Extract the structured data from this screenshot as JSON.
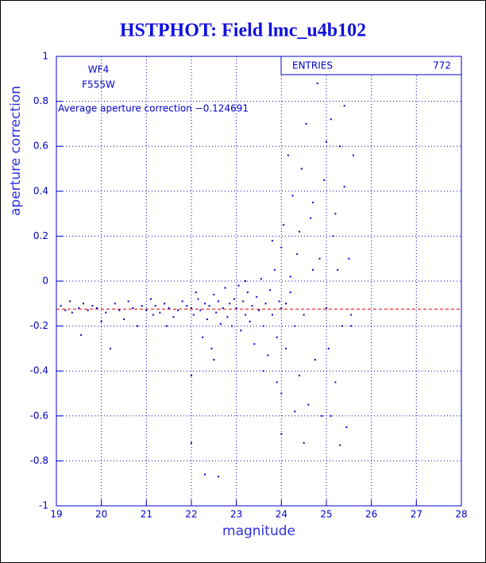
{
  "chart_data": {
    "type": "scatter",
    "title": "HSTPHOT: Field lmc_u4b102",
    "x_label": "magnitude",
    "y_label": "aperture correction",
    "annotations": [
      "WF4",
      "F555W",
      "Average aperture correction −0.124691"
    ],
    "stats_label": "ENTRIES",
    "entries": 772,
    "average_line": -0.124691,
    "average_line_color": "#e00000",
    "color": "#0000cc",
    "grid": true,
    "xlim": [
      19,
      28
    ],
    "xticks": [
      19,
      20,
      21,
      22,
      23,
      24,
      25,
      26,
      27,
      28
    ],
    "ylim": [
      -1,
      1
    ],
    "yticks": [
      -1,
      -0.8,
      -0.6,
      -0.4,
      -0.2,
      0,
      0.2,
      0.4,
      0.6,
      0.8,
      1
    ],
    "x": [
      19.1,
      19.2,
      19.3,
      19.35,
      19.5,
      19.6,
      19.7,
      19.8,
      19.55,
      19.9,
      20.0,
      20.1,
      20.2,
      20.3,
      20.4,
      20.5,
      20.6,
      20.7,
      20.8,
      20.9,
      21.0,
      21.1,
      21.15,
      21.2,
      21.3,
      21.4,
      21.45,
      21.5,
      21.6,
      21.7,
      21.8,
      21.9,
      22.0,
      22.0,
      22.0,
      22.05,
      22.1,
      22.15,
      22.2,
      22.25,
      22.3,
      22.35,
      22.4,
      22.45,
      22.5,
      22.55,
      22.6,
      22.65,
      22.7,
      22.75,
      22.8,
      22.85,
      22.9,
      22.95,
      22.3,
      22.6,
      22.5,
      23.0,
      23.05,
      23.1,
      23.15,
      23.2,
      23.25,
      23.3,
      23.35,
      23.4,
      23.45,
      23.5,
      23.55,
      23.6,
      23.65,
      23.7,
      23.75,
      23.8,
      23.85,
      23.9,
      23.95,
      23.2,
      23.6,
      23.8,
      23.9,
      24.0,
      24.0,
      24.0,
      24.0,
      24.05,
      24.1,
      24.15,
      24.2,
      24.25,
      24.3,
      24.35,
      24.4,
      24.45,
      24.5,
      24.55,
      24.6,
      24.65,
      24.7,
      24.75,
      24.8,
      24.85,
      24.9,
      24.95,
      24.5,
      24.4,
      24.3,
      24.2,
      24.1,
      24.7,
      25.0,
      25.0,
      25.05,
      25.1,
      25.15,
      25.2,
      25.25,
      25.3,
      25.35,
      25.4,
      25.45,
      25.5,
      25.55,
      25.6,
      25.3,
      25.2,
      25.1,
      25.4,
      25.55
    ],
    "values": [
      -0.11,
      -0.13,
      -0.09,
      -0.14,
      -0.12,
      -0.1,
      -0.13,
      -0.11,
      -0.24,
      -0.12,
      -0.18,
      -0.14,
      -0.3,
      -0.1,
      -0.13,
      -0.17,
      -0.09,
      -0.12,
      -0.2,
      -0.11,
      -0.13,
      -0.08,
      -0.15,
      -0.11,
      -0.14,
      -0.1,
      -0.2,
      -0.12,
      -0.16,
      -0.13,
      -0.09,
      -0.11,
      -0.12,
      -0.42,
      -0.72,
      -0.15,
      -0.05,
      -0.08,
      -0.13,
      -0.25,
      -0.1,
      -0.17,
      -0.11,
      -0.3,
      -0.06,
      -0.14,
      -0.09,
      -0.19,
      -0.12,
      -0.03,
      -0.16,
      -0.1,
      -0.2,
      -0.08,
      -0.86,
      -0.87,
      -0.35,
      -0.12,
      -0.02,
      -0.22,
      -0.09,
      -0.15,
      -0.05,
      -0.18,
      -0.11,
      -0.28,
      -0.07,
      -0.13,
      0.01,
      -0.2,
      -0.1,
      -0.33,
      -0.04,
      -0.15,
      0.05,
      -0.25,
      -0.09,
      0.0,
      -0.4,
      0.18,
      -0.45,
      -0.12,
      0.15,
      -0.5,
      -0.68,
      0.25,
      -0.3,
      0.56,
      -0.05,
      0.38,
      -0.2,
      0.12,
      -0.42,
      0.5,
      -0.15,
      0.7,
      -0.55,
      0.28,
      0.05,
      -0.35,
      0.88,
      0.1,
      -0.6,
      0.45,
      -0.72,
      0.22,
      -0.58,
      0.02,
      -0.1,
      0.35,
      -0.12,
      0.62,
      -0.3,
      0.72,
      0.2,
      -0.45,
      0.05,
      0.6,
      -0.2,
      0.42,
      -0.65,
      0.1,
      -0.15,
      0.56,
      -0.73,
      0.3,
      -0.6,
      0.78,
      -0.2
    ]
  }
}
